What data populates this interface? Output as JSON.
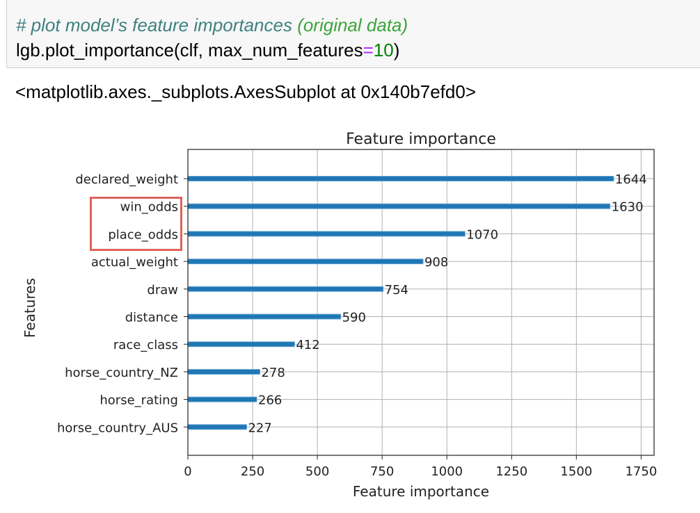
{
  "code_cell": {
    "comment_text": "# plot model’s feature importances ",
    "comment_highlight": "(original data)",
    "code_prefix": "lgb.plot_importance(clf, max_num_features",
    "code_operator": "=",
    "code_number": "10",
    "code_suffix": ")"
  },
  "output": {
    "repr_text": "<matplotlib.axes._subplots.AxesSubplot at 0x140b7efd0>"
  },
  "colors": {
    "bar": "#1f77b4",
    "highlight_box": "#e0625a",
    "grid": "#b0b0b0"
  },
  "chart_data": {
    "type": "bar",
    "orientation": "horizontal",
    "title": "Feature importance",
    "xlabel": "Feature importance",
    "ylabel": "Features",
    "categories": [
      "declared_weight",
      "win_odds",
      "place_odds",
      "actual_weight",
      "draw",
      "distance",
      "race_class",
      "horse_country_NZ",
      "horse_rating",
      "horse_country_AUS"
    ],
    "values": [
      1644,
      1630,
      1070,
      908,
      754,
      590,
      412,
      278,
      266,
      227
    ],
    "xlim": [
      0,
      1800
    ],
    "xticks": [
      0,
      250,
      500,
      750,
      1000,
      1250,
      1500,
      1750
    ],
    "grid": true,
    "highlighted_categories": [
      "win_odds",
      "place_odds"
    ]
  }
}
